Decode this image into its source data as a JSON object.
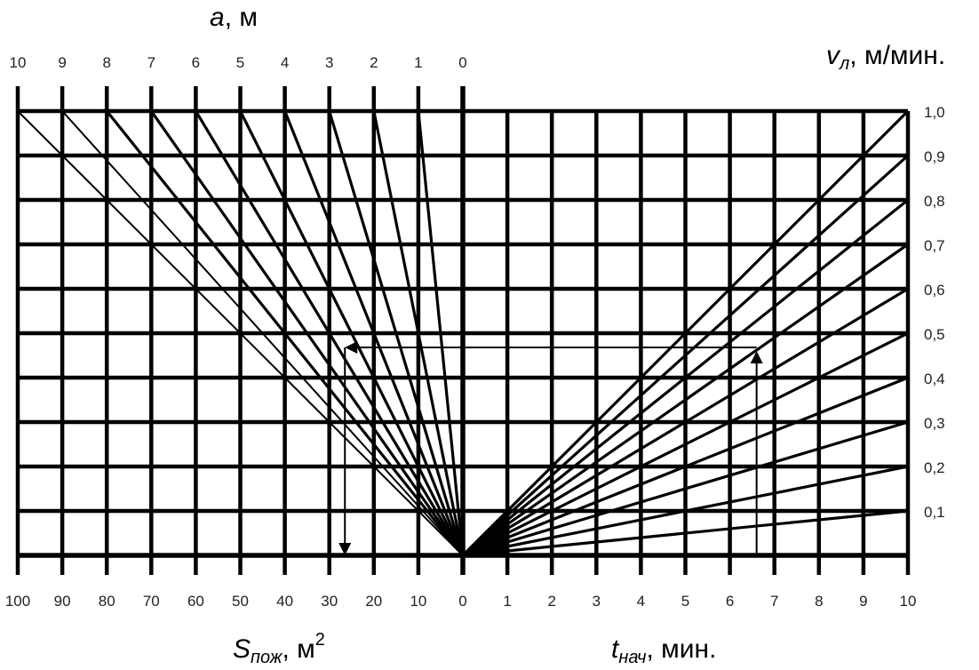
{
  "chart_data": {
    "type": "nomogram",
    "axes": {
      "top": {
        "symbol": "a",
        "unit": ", м",
        "ticks": [
          "10",
          "9",
          "8",
          "7",
          "6",
          "5",
          "4",
          "3",
          "2",
          "1",
          "0"
        ]
      },
      "bottom_left": {
        "symbol": "S",
        "subscript": "пож",
        "unit": ", м",
        "superscript": "2",
        "ticks": [
          "100",
          "90",
          "80",
          "70",
          "60",
          "50",
          "40",
          "30",
          "20",
          "10",
          "0"
        ]
      },
      "bottom_right": {
        "symbol": "t",
        "subscript": "нач",
        "unit": ", мин.",
        "ticks": [
          "1",
          "2",
          "3",
          "4",
          "5",
          "6",
          "7",
          "8",
          "9",
          "10"
        ]
      },
      "right": {
        "symbol": "v",
        "subscript": "л",
        "unit": ", м/мин.",
        "ticks": [
          "1,0",
          "0,9",
          "0,8",
          "0,7",
          "0,6",
          "0,5",
          "0,4",
          "0,3",
          "0,2",
          "0,1"
        ]
      }
    },
    "left_rays_a": [
      10,
      9,
      8,
      7,
      6,
      5,
      4,
      3,
      2,
      1
    ],
    "right_rays_v": [
      1.0,
      0.9,
      0.8,
      0.7,
      0.6,
      0.5,
      0.4,
      0.3,
      0.2,
      0.1
    ],
    "example": {
      "t_nach": 6.6,
      "v_l": 0.46,
      "S_pozh": 26.5
    },
    "grid": true
  }
}
